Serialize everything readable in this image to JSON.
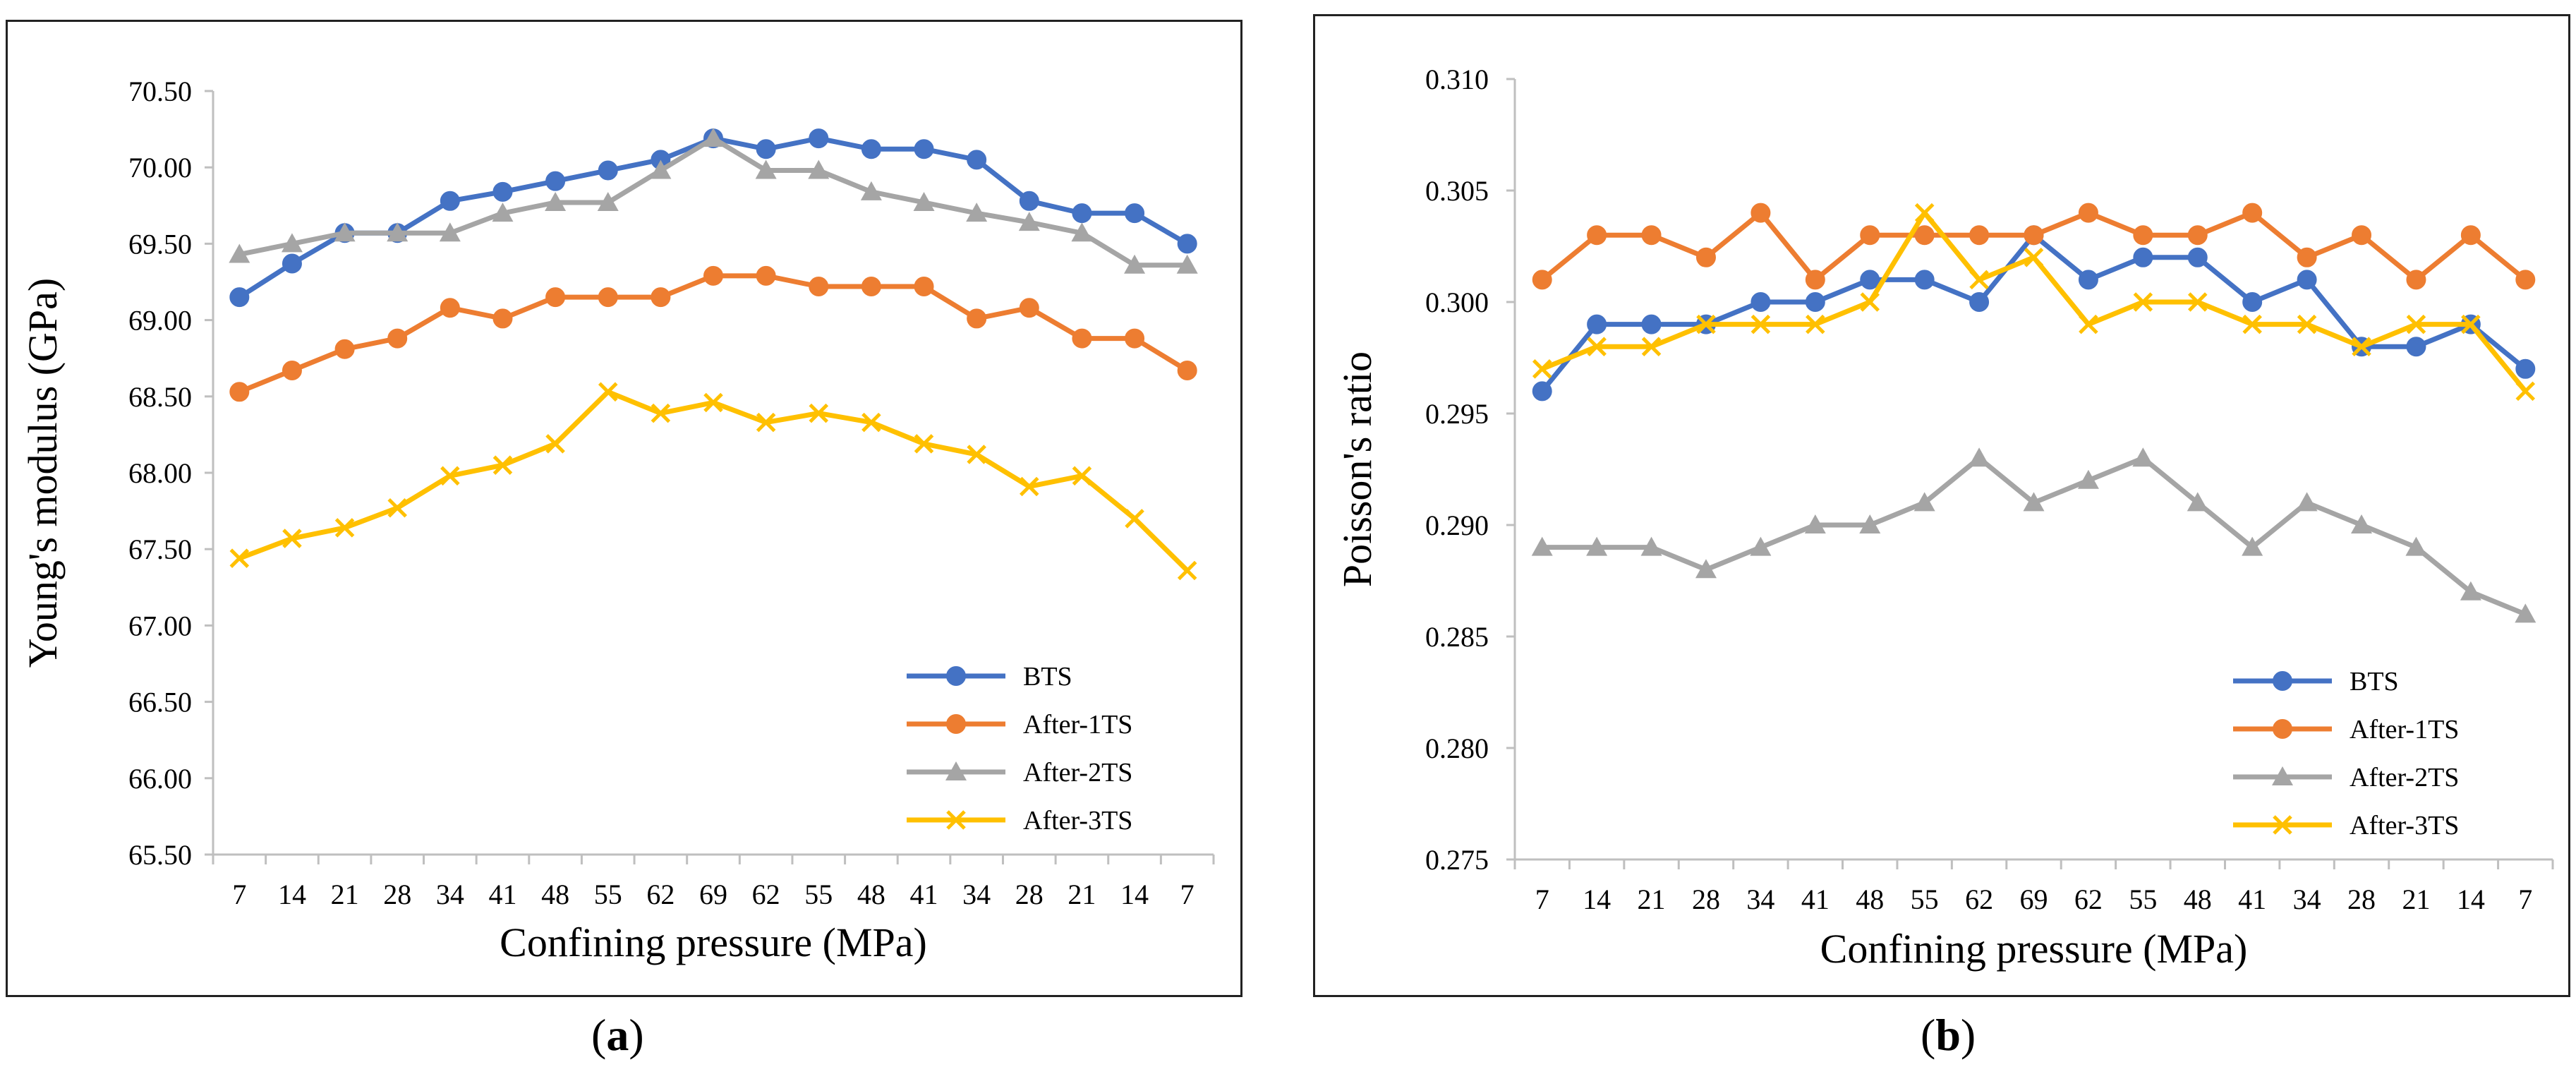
{
  "chart_data": [
    {
      "panel": "(a)",
      "panel_label": {
        "open": "(",
        "letter": "a",
        "close": ")"
      },
      "type": "line",
      "title": "",
      "xlabel": "Confining pressure (MPa)",
      "ylabel": "Young's modulus (GPa)",
      "categories": [
        "7",
        "14",
        "21",
        "28",
        "34",
        "41",
        "48",
        "55",
        "62",
        "69",
        "62",
        "55",
        "48",
        "41",
        "34",
        "28",
        "21",
        "14",
        "7"
      ],
      "ylim": [
        65.5,
        70.5
      ],
      "yticks": [
        65.5,
        66.0,
        66.5,
        67.0,
        67.5,
        68.0,
        68.5,
        69.0,
        69.5,
        70.0,
        70.5
      ],
      "ytick_decimals": 2,
      "grid": false,
      "legend_position": "bottom-right",
      "series": [
        {
          "name": "BTS",
          "color": "#4472C4",
          "marker": "circle",
          "values": [
            69.15,
            69.37,
            69.57,
            69.57,
            69.78,
            69.84,
            69.91,
            69.98,
            70.05,
            70.19,
            70.12,
            70.19,
            70.12,
            70.12,
            70.05,
            69.78,
            69.7,
            69.7,
            69.5
          ]
        },
        {
          "name": "After-1TS",
          "color": "#ED7D31",
          "marker": "circle",
          "values": [
            68.53,
            68.67,
            68.81,
            68.88,
            69.08,
            69.01,
            69.15,
            69.15,
            69.15,
            69.29,
            69.29,
            69.22,
            69.22,
            69.22,
            69.01,
            69.08,
            68.88,
            68.88,
            68.67
          ]
        },
        {
          "name": "After-2TS",
          "color": "#A5A5A5",
          "marker": "triangle",
          "values": [
            69.43,
            69.5,
            69.57,
            69.57,
            69.57,
            69.7,
            69.77,
            69.77,
            69.98,
            70.19,
            69.98,
            69.98,
            69.84,
            69.77,
            69.7,
            69.64,
            69.57,
            69.36,
            69.36
          ]
        },
        {
          "name": "After-3TS",
          "color": "#FFC000",
          "marker": "x",
          "values": [
            67.44,
            67.57,
            67.64,
            67.77,
            67.98,
            68.05,
            68.19,
            68.53,
            68.39,
            68.46,
            68.33,
            68.39,
            68.33,
            68.19,
            68.12,
            67.91,
            67.98,
            67.7,
            67.36
          ]
        }
      ]
    },
    {
      "panel": "(b)",
      "panel_label": {
        "open": "(",
        "letter": "b",
        "close": ")"
      },
      "type": "line",
      "title": "",
      "xlabel": "Confining pressure (MPa)",
      "ylabel": "Poisson's ratio",
      "categories": [
        "7",
        "14",
        "21",
        "28",
        "34",
        "41",
        "48",
        "55",
        "62",
        "69",
        "62",
        "55",
        "48",
        "41",
        "34",
        "28",
        "21",
        "14",
        "7"
      ],
      "ylim": [
        0.275,
        0.31
      ],
      "yticks": [
        0.275,
        0.28,
        0.285,
        0.29,
        0.295,
        0.3,
        0.305,
        0.31
      ],
      "ytick_decimals": 3,
      "grid": false,
      "legend_position": "bottom-right",
      "series": [
        {
          "name": "BTS",
          "color": "#4472C4",
          "marker": "circle",
          "values": [
            0.296,
            0.299,
            0.299,
            0.299,
            0.3,
            0.3,
            0.301,
            0.301,
            0.3,
            0.303,
            0.301,
            0.302,
            0.302,
            0.3,
            0.301,
            0.298,
            0.298,
            0.299,
            0.297
          ]
        },
        {
          "name": "After-1TS",
          "color": "#ED7D31",
          "marker": "circle",
          "values": [
            0.301,
            0.303,
            0.303,
            0.302,
            0.304,
            0.301,
            0.303,
            0.303,
            0.303,
            0.303,
            0.304,
            0.303,
            0.303,
            0.304,
            0.302,
            0.303,
            0.301,
            0.303,
            0.301
          ]
        },
        {
          "name": "After-2TS",
          "color": "#A5A5A5",
          "marker": "triangle",
          "values": [
            0.289,
            0.289,
            0.289,
            0.288,
            0.289,
            0.29,
            0.29,
            0.291,
            0.293,
            0.291,
            0.292,
            0.293,
            0.291,
            0.289,
            0.291,
            0.29,
            0.289,
            0.287,
            0.286
          ]
        },
        {
          "name": "After-3TS",
          "color": "#FFC000",
          "marker": "x",
          "values": [
            0.297,
            0.298,
            0.298,
            0.299,
            0.299,
            0.299,
            0.3,
            0.304,
            0.301,
            0.302,
            0.299,
            0.3,
            0.3,
            0.299,
            0.299,
            0.298,
            0.299,
            0.299,
            0.296
          ]
        }
      ]
    }
  ]
}
